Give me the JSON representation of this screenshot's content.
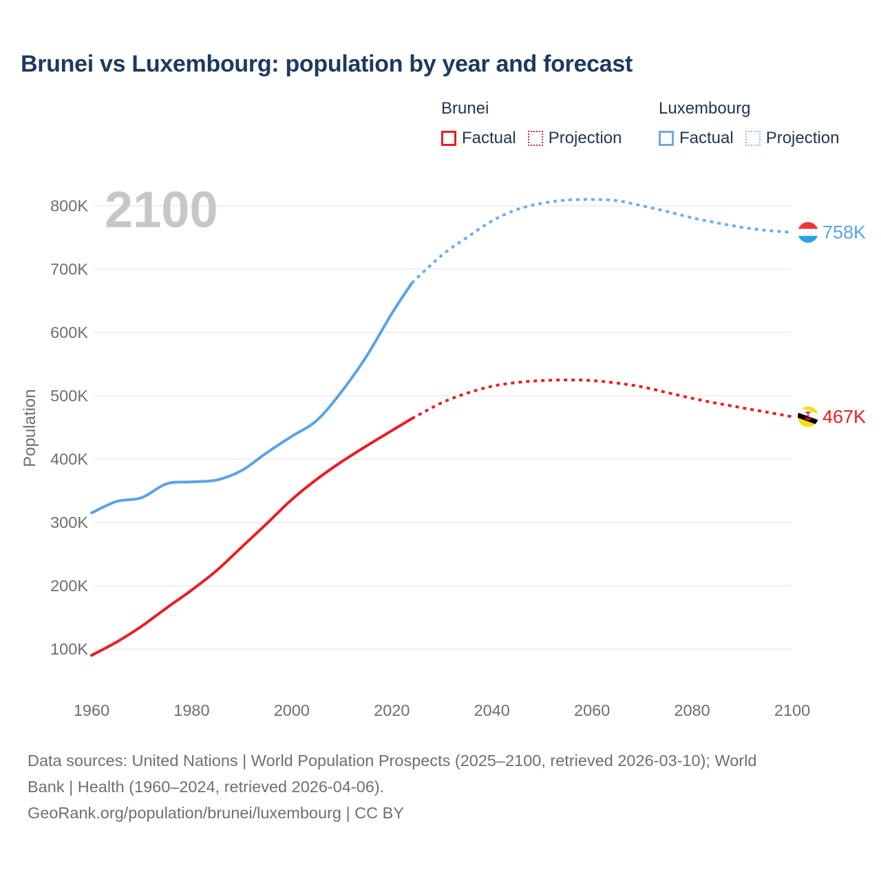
{
  "title": "Brunei vs Luxembourg: population by year and forecast",
  "watermark_year": "2100",
  "legend": {
    "groups": [
      {
        "name": "Brunei",
        "items": [
          {
            "label": "Factual",
            "style": "solid",
            "color": "#eb1c24"
          },
          {
            "label": "Projection",
            "style": "dotted",
            "color": "#eb1c24"
          }
        ]
      },
      {
        "name": "Luxembourg",
        "items": [
          {
            "label": "Factual",
            "style": "solid",
            "color": "#6ca9e3"
          },
          {
            "label": "Projection",
            "style": "dotted",
            "color": "#8fbdec"
          }
        ]
      }
    ]
  },
  "footer": {
    "lines": [
      "Data sources: United Nations | World Population Prospects (2025–2100, retrieved 2026-03-10); World",
      "Bank | Health (1960–2024, retrieved 2026-04-06).",
      "GeoRank.org/population/brunei/luxembourg | CC BY"
    ]
  },
  "chart_data": {
    "type": "line",
    "title": "Brunei vs Luxembourg: population by year and forecast",
    "xlabel": "",
    "ylabel": "Population",
    "units": "thousands",
    "grid": true,
    "legend_position": "top",
    "xlim": [
      1958,
      2114
    ],
    "ylim": [
      50,
      860
    ],
    "x_ticks": [
      1960,
      1980,
      2000,
      2020,
      2040,
      2060,
      2080,
      2100
    ],
    "y_ticks": [
      {
        "value": 100,
        "label": "100K"
      },
      {
        "value": 200,
        "label": "200K"
      },
      {
        "value": 300,
        "label": "300K"
      },
      {
        "value": 400,
        "label": "400K"
      },
      {
        "value": 500,
        "label": "500K"
      },
      {
        "value": 600,
        "label": "600K"
      },
      {
        "value": 700,
        "label": "700K"
      },
      {
        "value": 800,
        "label": "800K"
      }
    ],
    "series": [
      {
        "name": "Brunei Factual",
        "color": "#eb1c24",
        "style": "solid",
        "points": [
          [
            1960,
            90
          ],
          [
            1965,
            111
          ],
          [
            1970,
            136
          ],
          [
            1975,
            165
          ],
          [
            1980,
            193
          ],
          [
            1985,
            224
          ],
          [
            1990,
            261
          ],
          [
            1995,
            298
          ],
          [
            2000,
            336
          ],
          [
            2005,
            368
          ],
          [
            2010,
            396
          ],
          [
            2015,
            421
          ],
          [
            2020,
            445
          ],
          [
            2024,
            464
          ]
        ]
      },
      {
        "name": "Brunei Projection",
        "color": "#eb1c24",
        "style": "dotted",
        "points": [
          [
            2024,
            464
          ],
          [
            2030,
            489
          ],
          [
            2035,
            504
          ],
          [
            2040,
            515
          ],
          [
            2045,
            521
          ],
          [
            2050,
            524
          ],
          [
            2055,
            525
          ],
          [
            2060,
            524
          ],
          [
            2065,
            520
          ],
          [
            2070,
            514
          ],
          [
            2075,
            505
          ],
          [
            2080,
            496
          ],
          [
            2085,
            488
          ],
          [
            2090,
            481
          ],
          [
            2095,
            474
          ],
          [
            2100,
            467
          ]
        ]
      },
      {
        "name": "Luxembourg Factual",
        "color": "#5aa2e6",
        "style": "solid",
        "points": [
          [
            1960,
            315
          ],
          [
            1965,
            333
          ],
          [
            1970,
            339
          ],
          [
            1975,
            361
          ],
          [
            1980,
            364
          ],
          [
            1985,
            367
          ],
          [
            1990,
            382
          ],
          [
            1995,
            410
          ],
          [
            2000,
            436
          ],
          [
            2005,
            461
          ],
          [
            2010,
            507
          ],
          [
            2015,
            563
          ],
          [
            2020,
            630
          ],
          [
            2024,
            678
          ]
        ]
      },
      {
        "name": "Luxembourg Projection",
        "color": "#6faeea",
        "style": "dotted",
        "points": [
          [
            2024,
            678
          ],
          [
            2030,
            722
          ],
          [
            2035,
            750
          ],
          [
            2040,
            776
          ],
          [
            2045,
            794
          ],
          [
            2050,
            804
          ],
          [
            2055,
            809
          ],
          [
            2060,
            810
          ],
          [
            2065,
            808
          ],
          [
            2070,
            800
          ],
          [
            2075,
            791
          ],
          [
            2080,
            781
          ],
          [
            2085,
            773
          ],
          [
            2090,
            766
          ],
          [
            2095,
            761
          ],
          [
            2100,
            758
          ]
        ]
      }
    ],
    "end_labels": [
      {
        "country": "Luxembourg",
        "flag": "luxembourg",
        "text": "758K",
        "value": 758,
        "color": "#5aa2e6"
      },
      {
        "country": "Brunei",
        "flag": "brunei",
        "text": "467K",
        "value": 467,
        "color": "#eb1c24"
      }
    ]
  }
}
